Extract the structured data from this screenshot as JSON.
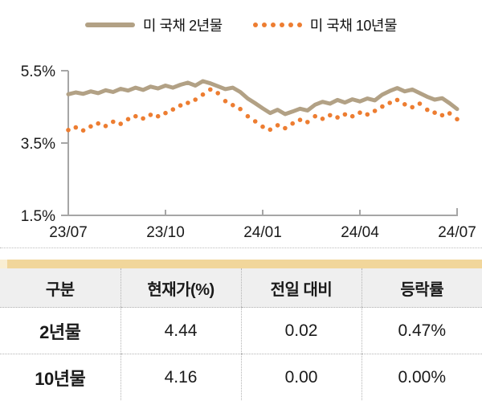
{
  "colors": {
    "series_2y": "#b2a185",
    "series_10y": "#ed7d31",
    "axis": "#a6a6a6",
    "label_text": "#1a1a1a",
    "gold_bar": "#f1d69b",
    "gold_notch": "#f9eed3",
    "header_bg": "#efefef",
    "dotted_border": "#b3b3b3"
  },
  "legend": {
    "items": [
      {
        "label": "미 국채 2년물",
        "swatch": "solid-line",
        "color": "#b2a185"
      },
      {
        "label": "미 국채 10년물",
        "swatch": "dotted-line",
        "color": "#ed7d31"
      }
    ]
  },
  "chart_data": {
    "type": "line",
    "title": "",
    "xlabel": "",
    "ylabel": "",
    "grid": false,
    "legend_position": "top",
    "ylim": [
      1.5,
      5.5
    ],
    "y_ticks": [
      5.5,
      3.5,
      1.5
    ],
    "y_tick_labels": [
      "5.5%",
      "3.5%",
      "1.5%"
    ],
    "x_tick_labels": [
      "23/07",
      "23/10",
      "24/01",
      "24/04",
      "24/07"
    ],
    "series": [
      {
        "name": "미 국채 2년물",
        "style": "solid",
        "color": "#b2a185",
        "values": [
          4.85,
          4.9,
          4.86,
          4.93,
          4.88,
          4.96,
          4.91,
          5.0,
          4.95,
          5.03,
          4.97,
          5.06,
          5.01,
          5.09,
          5.03,
          5.11,
          5.17,
          5.09,
          5.21,
          5.15,
          5.07,
          4.99,
          5.03,
          4.91,
          4.73,
          4.6,
          4.46,
          4.33,
          4.42,
          4.3,
          4.37,
          4.45,
          4.4,
          4.56,
          4.64,
          4.59,
          4.69,
          4.62,
          4.71,
          4.65,
          4.73,
          4.68,
          4.84,
          4.94,
          5.02,
          4.93,
          4.98,
          4.88,
          4.78,
          4.7,
          4.74,
          4.6,
          4.44
        ]
      },
      {
        "name": "미 국채 10년물",
        "style": "dotted",
        "color": "#ed7d31",
        "values": [
          3.86,
          3.93,
          3.85,
          3.96,
          4.04,
          3.97,
          4.09,
          4.03,
          4.16,
          4.24,
          4.18,
          4.28,
          4.24,
          4.33,
          4.43,
          4.54,
          4.61,
          4.7,
          4.84,
          4.98,
          4.88,
          4.66,
          4.55,
          4.44,
          4.24,
          4.1,
          3.95,
          3.87,
          3.99,
          3.91,
          4.04,
          4.14,
          4.08,
          4.24,
          4.17,
          4.27,
          4.21,
          4.29,
          4.24,
          4.34,
          4.29,
          4.39,
          4.51,
          4.61,
          4.69,
          4.57,
          4.49,
          4.59,
          4.42,
          4.34,
          4.27,
          4.32,
          4.16
        ]
      }
    ]
  },
  "table": {
    "headers": [
      "구분",
      "현재가(%)",
      "전일 대비",
      "등락률"
    ],
    "rows": [
      {
        "label": "2년물",
        "values": [
          "4.44",
          "0.02",
          "0.47%"
        ]
      },
      {
        "label": "10년물",
        "values": [
          "4.16",
          "0.00",
          "0.00%"
        ]
      }
    ]
  }
}
